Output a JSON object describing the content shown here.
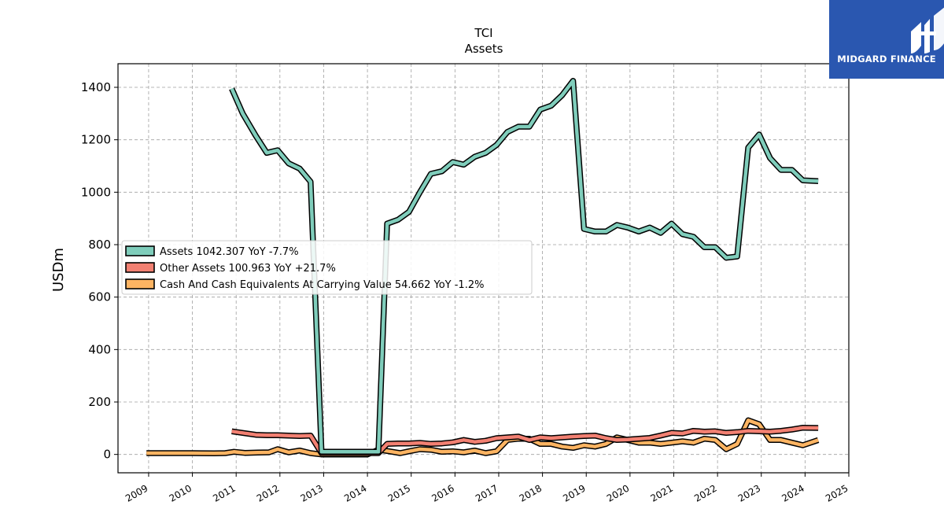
{
  "logo": {
    "text": "MIDGARD FINANCE"
  },
  "chart_data": {
    "type": "line",
    "title": "TCI",
    "subtitle": "Assets",
    "xlabel": "",
    "ylabel": "USDm",
    "xlim": [
      2008.3,
      2025.0
    ],
    "ylim": [
      -70,
      1490
    ],
    "grid": true,
    "legend_position": "middle-left",
    "x_ticks": [
      "2009",
      "2010",
      "2011",
      "2012",
      "2013",
      "2014",
      "2015",
      "2016",
      "2017",
      "2018",
      "2019",
      "2020",
      "2021",
      "2022",
      "2023",
      "2024",
      "2025"
    ],
    "y_ticks": [
      0,
      200,
      400,
      600,
      800,
      1000,
      1200,
      1400
    ],
    "series": [
      {
        "name": "Assets",
        "legend_label": "Assets  1042.307 YoY -7.7%",
        "color": "#7fcdbb",
        "points": [
          [
            2010.9,
            1395
          ],
          [
            2011.15,
            1300
          ],
          [
            2011.45,
            1215
          ],
          [
            2011.7,
            1150
          ],
          [
            2011.95,
            1160
          ],
          [
            2012.2,
            1110
          ],
          [
            2012.45,
            1090
          ],
          [
            2012.7,
            1040
          ],
          [
            2012.95,
            10
          ],
          [
            2013.2,
            10
          ],
          [
            2013.5,
            10
          ],
          [
            2013.75,
            10
          ],
          [
            2014.0,
            10
          ],
          [
            2014.25,
            10
          ],
          [
            2014.45,
            880
          ],
          [
            2014.7,
            895
          ],
          [
            2014.95,
            925
          ],
          [
            2015.2,
            1000
          ],
          [
            2015.45,
            1070
          ],
          [
            2015.7,
            1080
          ],
          [
            2015.95,
            1115
          ],
          [
            2016.2,
            1105
          ],
          [
            2016.45,
            1135
          ],
          [
            2016.7,
            1150
          ],
          [
            2016.95,
            1180
          ],
          [
            2017.2,
            1230
          ],
          [
            2017.45,
            1250
          ],
          [
            2017.7,
            1250
          ],
          [
            2017.95,
            1315
          ],
          [
            2018.2,
            1330
          ],
          [
            2018.45,
            1370
          ],
          [
            2018.7,
            1425
          ],
          [
            2018.95,
            860
          ],
          [
            2019.2,
            850
          ],
          [
            2019.45,
            850
          ],
          [
            2019.7,
            875
          ],
          [
            2019.95,
            865
          ],
          [
            2020.2,
            850
          ],
          [
            2020.45,
            865
          ],
          [
            2020.7,
            845
          ],
          [
            2020.95,
            880
          ],
          [
            2021.2,
            840
          ],
          [
            2021.45,
            830
          ],
          [
            2021.7,
            790
          ],
          [
            2021.95,
            790
          ],
          [
            2022.2,
            750
          ],
          [
            2022.45,
            755
          ],
          [
            2022.7,
            1170
          ],
          [
            2022.95,
            1220
          ],
          [
            2023.2,
            1130
          ],
          [
            2023.45,
            1085
          ],
          [
            2023.7,
            1085
          ],
          [
            2023.95,
            1045
          ],
          [
            2024.3,
            1042.307
          ]
        ]
      },
      {
        "name": "Other Assets",
        "legend_label": "Other Assets  100.963 YoY +21.7%",
        "color": "#f28072",
        "points": [
          [
            2010.9,
            88
          ],
          [
            2011.15,
            82
          ],
          [
            2011.45,
            75
          ],
          [
            2011.7,
            73
          ],
          [
            2011.95,
            73
          ],
          [
            2012.2,
            72
          ],
          [
            2012.45,
            70
          ],
          [
            2012.7,
            72
          ],
          [
            2012.95,
            5
          ],
          [
            2013.2,
            5
          ],
          [
            2013.5,
            5
          ],
          [
            2013.75,
            5
          ],
          [
            2014.0,
            5
          ],
          [
            2014.25,
            5
          ],
          [
            2014.45,
            40
          ],
          [
            2014.7,
            42
          ],
          [
            2014.95,
            42
          ],
          [
            2015.2,
            44
          ],
          [
            2015.45,
            40
          ],
          [
            2015.7,
            42
          ],
          [
            2015.95,
            46
          ],
          [
            2016.2,
            55
          ],
          [
            2016.45,
            48
          ],
          [
            2016.7,
            52
          ],
          [
            2016.95,
            62
          ],
          [
            2017.2,
            65
          ],
          [
            2017.45,
            68
          ],
          [
            2017.7,
            55
          ],
          [
            2017.95,
            65
          ],
          [
            2018.2,
            62
          ],
          [
            2018.45,
            65
          ],
          [
            2018.7,
            68
          ],
          [
            2018.95,
            70
          ],
          [
            2019.2,
            72
          ],
          [
            2019.45,
            62
          ],
          [
            2019.7,
            55
          ],
          [
            2019.95,
            57
          ],
          [
            2020.2,
            60
          ],
          [
            2020.45,
            63
          ],
          [
            2020.7,
            72
          ],
          [
            2020.95,
            82
          ],
          [
            2021.2,
            80
          ],
          [
            2021.45,
            90
          ],
          [
            2021.7,
            87
          ],
          [
            2021.95,
            88
          ],
          [
            2022.2,
            82
          ],
          [
            2022.45,
            85
          ],
          [
            2022.7,
            90
          ],
          [
            2022.95,
            88
          ],
          [
            2023.2,
            87
          ],
          [
            2023.45,
            90
          ],
          [
            2023.7,
            95
          ],
          [
            2023.95,
            102
          ],
          [
            2024.3,
            100.963
          ]
        ]
      },
      {
        "name": "Cash And Cash Equivalents At Carrying Value",
        "legend_label": "Cash And Cash Equivalents At Carrying Value  54.662 YoY -1.2%",
        "color": "#fdb462",
        "points": [
          [
            2008.95,
            5
          ],
          [
            2009.5,
            5
          ],
          [
            2010.0,
            5
          ],
          [
            2010.5,
            4
          ],
          [
            2010.75,
            5
          ],
          [
            2010.95,
            10
          ],
          [
            2011.2,
            6
          ],
          [
            2011.5,
            7
          ],
          [
            2011.75,
            8
          ],
          [
            2011.95,
            20
          ],
          [
            2012.2,
            8
          ],
          [
            2012.45,
            15
          ],
          [
            2012.7,
            5
          ],
          [
            2012.95,
            0
          ],
          [
            2013.5,
            0
          ],
          [
            2014.0,
            0
          ],
          [
            2014.25,
            18
          ],
          [
            2014.5,
            12
          ],
          [
            2014.75,
            5
          ],
          [
            2014.95,
            12
          ],
          [
            2015.2,
            20
          ],
          [
            2015.45,
            18
          ],
          [
            2015.7,
            10
          ],
          [
            2015.95,
            12
          ],
          [
            2016.2,
            8
          ],
          [
            2016.45,
            15
          ],
          [
            2016.7,
            5
          ],
          [
            2016.95,
            12
          ],
          [
            2017.2,
            55
          ],
          [
            2017.45,
            60
          ],
          [
            2017.7,
            60
          ],
          [
            2017.95,
            40
          ],
          [
            2018.2,
            40
          ],
          [
            2018.45,
            30
          ],
          [
            2018.7,
            25
          ],
          [
            2018.95,
            35
          ],
          [
            2019.2,
            30
          ],
          [
            2019.45,
            40
          ],
          [
            2019.7,
            65
          ],
          [
            2019.95,
            55
          ],
          [
            2020.2,
            45
          ],
          [
            2020.45,
            45
          ],
          [
            2020.7,
            40
          ],
          [
            2020.95,
            45
          ],
          [
            2021.2,
            50
          ],
          [
            2021.45,
            45
          ],
          [
            2021.7,
            60
          ],
          [
            2021.95,
            55
          ],
          [
            2022.2,
            20
          ],
          [
            2022.45,
            40
          ],
          [
            2022.7,
            130
          ],
          [
            2022.95,
            115
          ],
          [
            2023.2,
            55
          ],
          [
            2023.45,
            55
          ],
          [
            2023.7,
            45
          ],
          [
            2023.95,
            35
          ],
          [
            2024.3,
            54.662
          ]
        ]
      }
    ]
  }
}
